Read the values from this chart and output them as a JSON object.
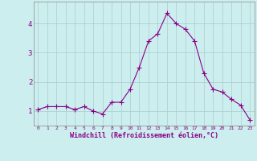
{
  "x": [
    0,
    1,
    2,
    3,
    4,
    5,
    6,
    7,
    8,
    9,
    10,
    11,
    12,
    13,
    14,
    15,
    16,
    17,
    18,
    19,
    20,
    21,
    22,
    23
  ],
  "y": [
    1.05,
    1.15,
    1.15,
    1.15,
    1.05,
    1.15,
    1.0,
    0.9,
    1.3,
    1.3,
    1.75,
    2.5,
    3.4,
    3.65,
    4.35,
    4.0,
    3.8,
    3.4,
    2.3,
    1.75,
    1.65,
    1.4,
    1.2,
    0.7
  ],
  "line_color": "#880088",
  "marker": "+",
  "marker_size": 4,
  "bg_color": "#cceeee",
  "grid_color": "#aacccc",
  "xlabel": "Windchill (Refroidissement éolien,°C)",
  "xlabel_color": "#880088",
  "tick_color": "#880088",
  "yticks": [
    1,
    2,
    3,
    4
  ],
  "xtick_labels": [
    "0",
    "1",
    "2",
    "3",
    "4",
    "5",
    "6",
    "7",
    "8",
    "9",
    "10",
    "11",
    "12",
    "13",
    "14",
    "15",
    "16",
    "17",
    "18",
    "19",
    "20",
    "21",
    "22",
    "23"
  ],
  "xlim": [
    -0.5,
    23.5
  ],
  "ylim": [
    0.5,
    4.75
  ],
  "spine_color": "#888888"
}
